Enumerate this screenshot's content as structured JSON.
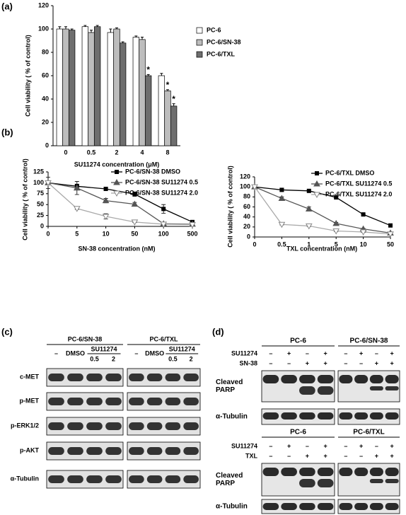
{
  "chart_data": [
    {
      "panel": "(a)",
      "type": "bar",
      "categories": [
        "0",
        "0.5",
        "2",
        "4",
        "8"
      ],
      "series": [
        {
          "name": "PC-6",
          "color": "#ffffff",
          "values": [
            100,
            102,
            97,
            93,
            60
          ],
          "errors": [
            2,
            1,
            3,
            1,
            2
          ]
        },
        {
          "name": "PC-6/SN-38",
          "color": "#bdbdbd",
          "values": [
            100,
            97,
            100,
            91,
            47
          ],
          "errors": [
            2,
            2,
            1,
            2,
            1
          ]
        },
        {
          "name": "PC-6/TXL",
          "color": "#6e6e6e",
          "values": [
            99,
            102,
            88,
            60,
            34
          ],
          "errors": [
            1,
            1,
            1,
            1,
            2
          ]
        }
      ],
      "ylim": [
        0,
        120
      ],
      "yticks": [
        0,
        20,
        40,
        60,
        80,
        100,
        120
      ],
      "ylabel": "Cell viability ( % of control)",
      "xlabel": "SU11274  concentration (μM)",
      "annotations": [
        {
          "text": "*",
          "series": 2,
          "category": 3
        },
        {
          "text": "*",
          "series": 1,
          "category": 4
        },
        {
          "text": "*",
          "series": 2,
          "category": 4
        }
      ]
    },
    {
      "panel": "(b)",
      "type": "line",
      "categories": [
        "0",
        "5",
        "10",
        "50",
        "100",
        "500"
      ],
      "series": [
        {
          "name": "PC-6/SN-38 DMSO",
          "color": "#000000",
          "marker": "square",
          "values": [
            100,
            92,
            86,
            74,
            40,
            10
          ],
          "errors": [
            13,
            5,
            4,
            5,
            10,
            1
          ]
        },
        {
          "name": "PC-6/SN-38 SU11274 0.5",
          "color": "#555555",
          "marker": "triangle",
          "values": [
            100,
            88,
            59,
            51,
            6,
            5
          ],
          "errors": [
            0,
            15,
            5,
            4,
            1,
            1
          ]
        },
        {
          "name": "PC-6/SN-38 SU11274 2.0",
          "color": "#aaaaaa",
          "marker": "triangle-down-open",
          "values": [
            100,
            41,
            23,
            10,
            5,
            4
          ],
          "errors": [
            0,
            2,
            6,
            1,
            1,
            1
          ]
        }
      ],
      "ylim": [
        0,
        125
      ],
      "yticks": [
        0,
        25,
        50,
        75,
        100,
        125
      ],
      "ylabel": "Cell viability ( % of control)",
      "xlabel": "SN-38 concentration (nM)"
    },
    {
      "type": "line",
      "categories": [
        "0",
        "0.5",
        "1",
        "5",
        "10",
        "50"
      ],
      "series": [
        {
          "name": "PC-6/TXL DMSO",
          "color": "#000000",
          "marker": "square",
          "values": [
            100,
            94,
            92,
            79,
            45,
            23
          ],
          "errors": [
            1,
            3,
            2,
            1,
            1,
            1
          ]
        },
        {
          "name": "PC-6/TXL SU11274 0.5",
          "color": "#555555",
          "marker": "triangle",
          "values": [
            100,
            77,
            56,
            27,
            16,
            8
          ],
          "errors": [
            0,
            3,
            4,
            2,
            1,
            1
          ]
        },
        {
          "name": "PC-6/TXL SU11274 2.0",
          "color": "#aaaaaa",
          "marker": "triangle-down-open",
          "values": [
            100,
            25,
            22,
            12,
            10,
            6
          ],
          "errors": [
            0,
            1,
            1,
            1,
            1,
            1
          ]
        }
      ],
      "ylim": [
        0,
        120
      ],
      "yticks": [
        0,
        20,
        40,
        60,
        80,
        100,
        120
      ],
      "ylabel": "Cell viability ( % of control)",
      "xlabel": "TXL concentration (nM)"
    }
  ],
  "blots_c": {
    "panel": "(c)",
    "groups": [
      {
        "title": "PC-6/SN-38",
        "lanes": [
          "–",
          "DMSO",
          "0.5",
          "2"
        ],
        "span_label": "SU11274"
      },
      {
        "title": "PC-6/TXL",
        "lanes": [
          "–",
          "DMSO",
          "0.5",
          "2"
        ],
        "span_label": "SU11274"
      }
    ],
    "rows": [
      "c-MET",
      "p-MET",
      "p-ERK1/2",
      "p-AKT",
      "α-Tubulin"
    ]
  },
  "blots_d": {
    "panel": "(d)",
    "blocks": [
      {
        "groups": [
          "PC-6",
          "PC-6/SN-38"
        ],
        "conditions": [
          {
            "name": "SU11274",
            "signs": [
              "–",
              "+",
              "–",
              "+"
            ]
          },
          {
            "name": "SN-38",
            "signs": [
              "–",
              "–",
              "+",
              "+"
            ]
          }
        ],
        "rows": [
          [
            "Cleaved",
            "PARP"
          ],
          [
            "α-Tubulin"
          ]
        ]
      },
      {
        "groups": [
          "PC-6",
          "PC-6/TXL"
        ],
        "conditions": [
          {
            "name": "SU11274",
            "signs": [
              "–",
              "+",
              "–",
              "+"
            ]
          },
          {
            "name": "TXL",
            "signs": [
              "–",
              "–",
              "+",
              "+"
            ]
          }
        ],
        "rows": [
          [
            "Cleaved",
            "PARP"
          ],
          [
            "α-Tubulin"
          ]
        ]
      }
    ]
  }
}
